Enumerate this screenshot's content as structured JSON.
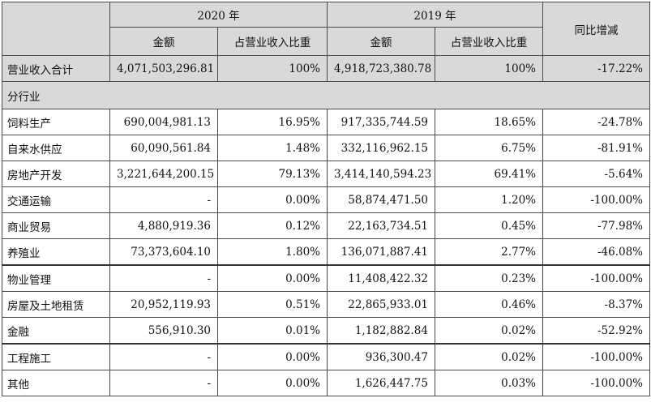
{
  "header": {
    "year2020": "2020 年",
    "year2019": "2019 年",
    "yoy": "同比增减",
    "amount": "金额",
    "ratio": "占营业收入比重"
  },
  "total": {
    "label": "营业收入合计",
    "amt2020": "4,071,503,296.81",
    "pct2020": "100%",
    "amt2019": "4,918,723,380.78",
    "pct2019": "100%",
    "yoy": "-17.22%"
  },
  "section_label": "分行业",
  "rows": [
    {
      "label": "饲料生产",
      "amt2020": "690,004,981.13",
      "pct2020": "16.95%",
      "amt2019": "917,335,744.59",
      "pct2019": "18.65%",
      "yoy": "-24.78%"
    },
    {
      "label": "自来水供应",
      "amt2020": "60,090,561.84",
      "pct2020": "1.48%",
      "amt2019": "332,116,962.15",
      "pct2019": "6.75%",
      "yoy": "-81.91%"
    },
    {
      "label": "房地产开发",
      "amt2020": "3,221,644,200.15",
      "pct2020": "79.13%",
      "amt2019": "3,414,140,594.23",
      "pct2019": "69.41%",
      "yoy": "-5.64%"
    },
    {
      "label": "交通运输",
      "amt2020": "-",
      "pct2020": "0.00%",
      "amt2019": "58,874,471.50",
      "pct2019": "1.20%",
      "yoy": "-100.00%"
    },
    {
      "label": "商业贸易",
      "amt2020": "4,880,919.36",
      "pct2020": "0.12%",
      "amt2019": "22,163,734.51",
      "pct2019": "0.45%",
      "yoy": "-77.98%"
    },
    {
      "label": "养殖业",
      "amt2020": "73,373,604.10",
      "pct2020": "1.80%",
      "amt2019": "136,071,887.41",
      "pct2019": "2.77%",
      "yoy": "-46.08%"
    },
    {
      "label": "物业管理",
      "amt2020": "-",
      "pct2020": "0.00%",
      "amt2019": "11,408,422.32",
      "pct2019": "0.23%",
      "yoy": "-100.00%"
    },
    {
      "label": "房屋及土地租赁",
      "amt2020": "20,952,119.93",
      "pct2020": "0.51%",
      "amt2019": "22,865,933.01",
      "pct2019": "0.46%",
      "yoy": "-8.37%"
    },
    {
      "label": "金融",
      "amt2020": "556,910.30",
      "pct2020": "0.01%",
      "amt2019": "1,182,882.84",
      "pct2019": "0.02%",
      "yoy": "-52.92%"
    },
    {
      "label": "工程施工",
      "amt2020": "-",
      "pct2020": "0.00%",
      "amt2019": "936,300.47",
      "pct2019": "0.02%",
      "yoy": "-100.00%"
    },
    {
      "label": "其他",
      "amt2020": "-",
      "pct2020": "0.00%",
      "amt2019": "1,626,447.75",
      "pct2019": "0.03%",
      "yoy": "-100.00%"
    }
  ]
}
